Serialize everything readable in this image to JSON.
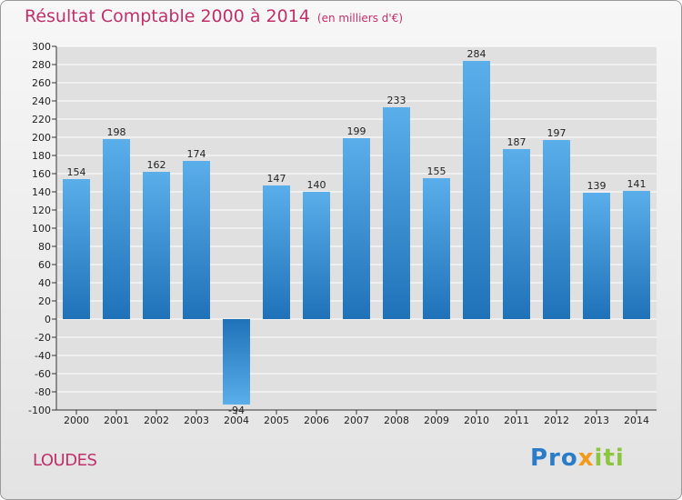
{
  "header": {
    "title": "Résultat Comptable 2000 à 2014",
    "unit": "(en milliers d'€)"
  },
  "footer": {
    "place": "LOUDES",
    "logo": {
      "p1": "Pro",
      "p2": "x",
      "p3": "iti"
    }
  },
  "colors": {
    "accent": "#c0306a",
    "bar_light": "#5aaeea",
    "bar_dark": "#1f72b8",
    "grid": "#ffffff",
    "plot_bg": "#e0e0e0"
  },
  "chart_data": {
    "type": "bar",
    "title": "Résultat Comptable 2000 à 2014",
    "subtitle": "(en milliers d'€)",
    "xlabel": "",
    "ylabel": "",
    "categories": [
      "2000",
      "2001",
      "2002",
      "2003",
      "2004",
      "2005",
      "2006",
      "2007",
      "2008",
      "2009",
      "2010",
      "2011",
      "2012",
      "2013",
      "2014"
    ],
    "values": [
      154,
      198,
      162,
      174,
      -94,
      147,
      140,
      199,
      233,
      155,
      284,
      187,
      197,
      139,
      141
    ],
    "ylim": [
      -100,
      300
    ],
    "yticks": [
      -100,
      -80,
      -60,
      -40,
      -20,
      0,
      20,
      40,
      60,
      80,
      100,
      120,
      140,
      160,
      180,
      200,
      220,
      240,
      260,
      280,
      300
    ],
    "grid": true
  }
}
